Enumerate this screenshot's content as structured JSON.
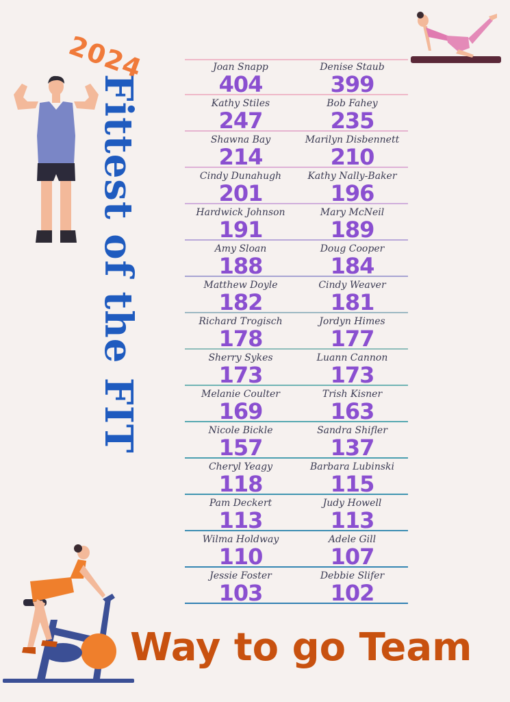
{
  "year": "2024",
  "title": "Fittest of the FIT",
  "footer": "Way to go Team",
  "icons": {
    "muscle_man": "flexing-man-icon",
    "yoga_woman": "yoga-woman-icon",
    "cyclist": "stationary-bike-woman-icon"
  },
  "colors": {
    "score": "#8a4fd0",
    "title": "#1f5bbf",
    "year": "#f07a3a",
    "footer": "#c8510f"
  },
  "rows": [
    {
      "left": {
        "name": "Joan Snapp",
        "score": "404"
      },
      "right": {
        "name": "Denise Staub",
        "score": "399"
      }
    },
    {
      "left": {
        "name": "Kathy Stiles",
        "score": "247"
      },
      "right": {
        "name": "Bob Fahey",
        "score": "235"
      }
    },
    {
      "left": {
        "name": "Shawna Bay",
        "score": "214"
      },
      "right": {
        "name": "Marilyn Disbennett",
        "score": "210"
      }
    },
    {
      "left": {
        "name": "Cindy Dunahugh",
        "score": "201"
      },
      "right": {
        "name": "Kathy Nally-Baker",
        "score": "196"
      }
    },
    {
      "left": {
        "name": "Hardwick Johnson",
        "score": "191"
      },
      "right": {
        "name": "Mary McNeil",
        "score": "189"
      }
    },
    {
      "left": {
        "name": "Amy Sloan",
        "score": "188"
      },
      "right": {
        "name": "Doug Cooper",
        "score": "184"
      }
    },
    {
      "left": {
        "name": "Matthew Doyle",
        "score": "182"
      },
      "right": {
        "name": "Cindy Weaver",
        "score": "181"
      }
    },
    {
      "left": {
        "name": "Richard Trogisch",
        "score": "178"
      },
      "right": {
        "name": "Jordyn Himes",
        "score": "177"
      }
    },
    {
      "left": {
        "name": "Sherry Sykes",
        "score": "173"
      },
      "right": {
        "name": "Luann Cannon",
        "score": "173"
      }
    },
    {
      "left": {
        "name": "Melanie Coulter",
        "score": "169"
      },
      "right": {
        "name": "Trish Kisner",
        "score": "163"
      }
    },
    {
      "left": {
        "name": "Nicole Bickle",
        "score": "157"
      },
      "right": {
        "name": "Sandra Shifler",
        "score": "137"
      }
    },
    {
      "left": {
        "name": "Cheryl Yeagy",
        "score": "118"
      },
      "right": {
        "name": "Barbara Lubinski",
        "score": "115"
      }
    },
    {
      "left": {
        "name": "Pam Deckert",
        "score": "113"
      },
      "right": {
        "name": "Judy Howell",
        "score": "113"
      }
    },
    {
      "left": {
        "name": "Wilma Holdway",
        "score": "110"
      },
      "right": {
        "name": "Adele Gill",
        "score": "107"
      }
    },
    {
      "left": {
        "name": "Jessie Foster",
        "score": "103"
      },
      "right": {
        "name": "Debbie Slifer",
        "score": "102"
      }
    }
  ]
}
